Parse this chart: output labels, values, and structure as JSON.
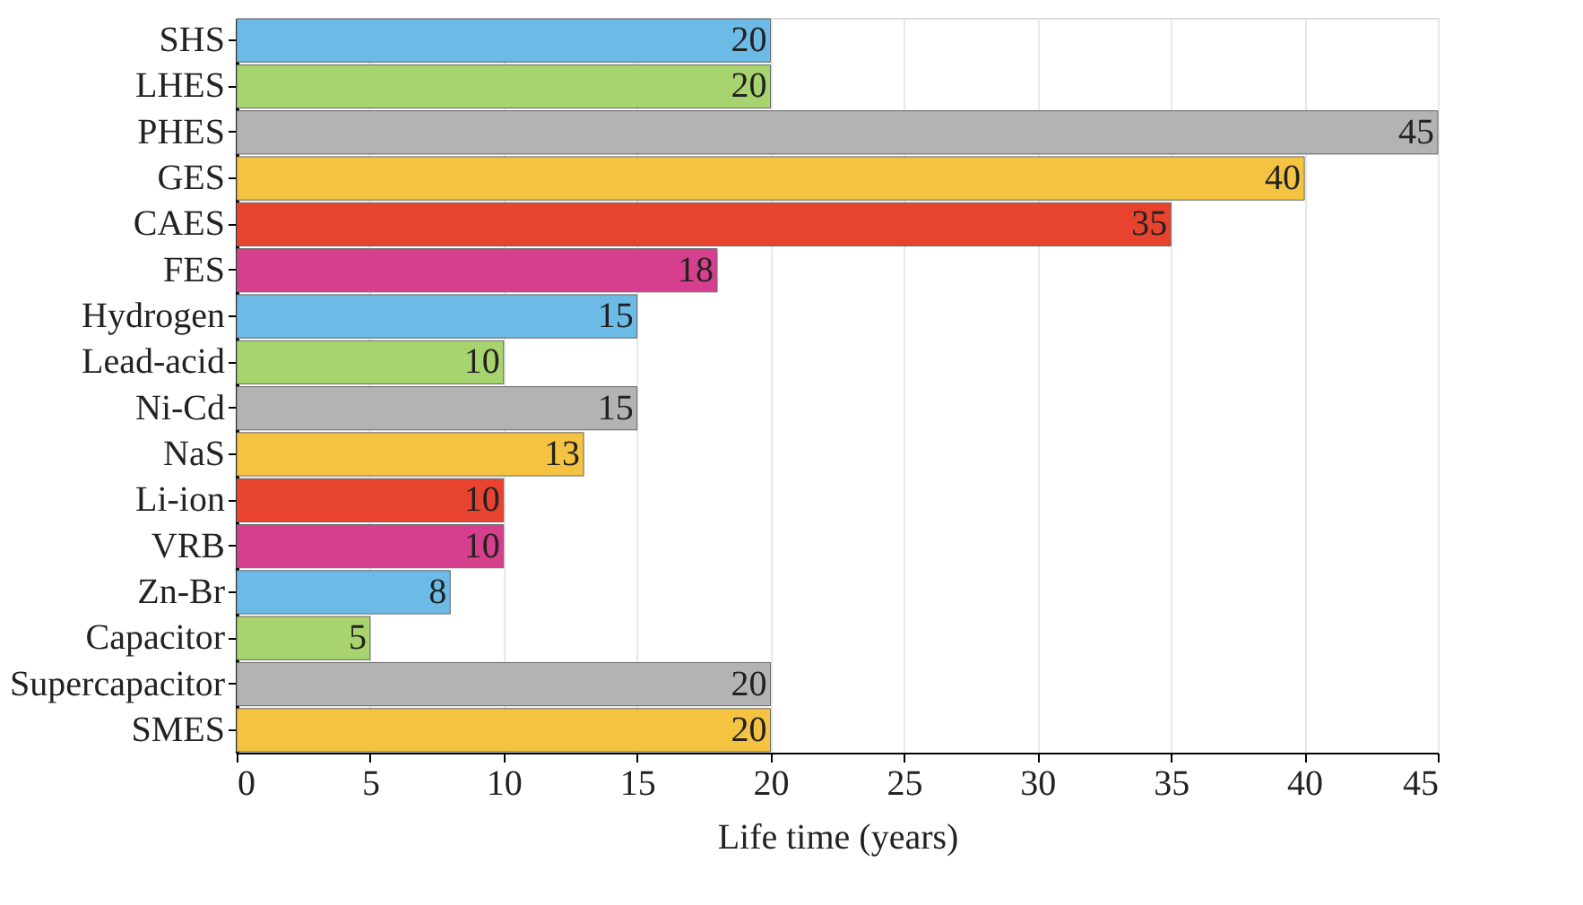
{
  "chart_data": {
    "type": "bar",
    "orientation": "horizontal",
    "xlabel": "Life time (years)",
    "categories": [
      "SHS",
      "LHES",
      "PHES",
      "GES",
      "CAES",
      "FES",
      "Hydrogen",
      "Lead-acid",
      "Ni-Cd",
      "NaS",
      "Li-ion",
      "VRB",
      "Zn-Br",
      "Capacitor",
      "Supercapacitor",
      "SMES"
    ],
    "values": [
      20,
      20,
      45,
      40,
      35,
      18,
      15,
      10,
      15,
      13,
      10,
      10,
      8,
      5,
      20,
      20
    ],
    "colors": [
      "#6bbbe6",
      "#a8d46f",
      "#b3b3b3",
      "#f5c342",
      "#e8432e",
      "#d63f8e",
      "#6bbbe6",
      "#a8d46f",
      "#b3b3b3",
      "#f5c342",
      "#e8432e",
      "#d63f8e",
      "#6bbbe6",
      "#a8d46f",
      "#b3b3b3",
      "#f5c342"
    ],
    "xlim": [
      0,
      45
    ],
    "xticks": [
      0,
      5,
      10,
      15,
      20,
      25,
      30,
      35,
      40,
      45
    ],
    "grid": "x",
    "data_labels": true
  }
}
